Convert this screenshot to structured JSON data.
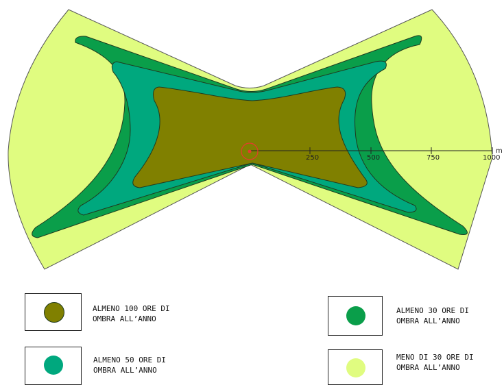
{
  "axis": {
    "tick_labels": [
      "250",
      "500",
      "750",
      "1000"
    ],
    "unit_label": "m"
  },
  "colors": {
    "background": "#ffffff",
    "outer": "#e0fc80",
    "mid_dark": "#0a9e4a",
    "mid_teal": "#00a87e",
    "inner": "#808000",
    "outline": "#1f3a1f",
    "marker": "#e63a2e"
  },
  "legend": {
    "items": [
      {
        "line1": "ALMENO 100 ORE DI",
        "line2": "OMBRA ALL’ANNO",
        "color": "#808000"
      },
      {
        "line1": "ALMENO 30 ORE DI",
        "line2": "OMBRA ALL’ANNO",
        "color": "#0a9e4a"
      },
      {
        "line1": "ALMENO 50 ORE DI",
        "line2": "OMBRA ALL’ANNO",
        "color": "#00a87e"
      },
      {
        "line1": "MENO DI 30 ORE DI",
        "line2": "OMBRA ALL’ANNO",
        "color": "#e0fc80"
      }
    ]
  }
}
